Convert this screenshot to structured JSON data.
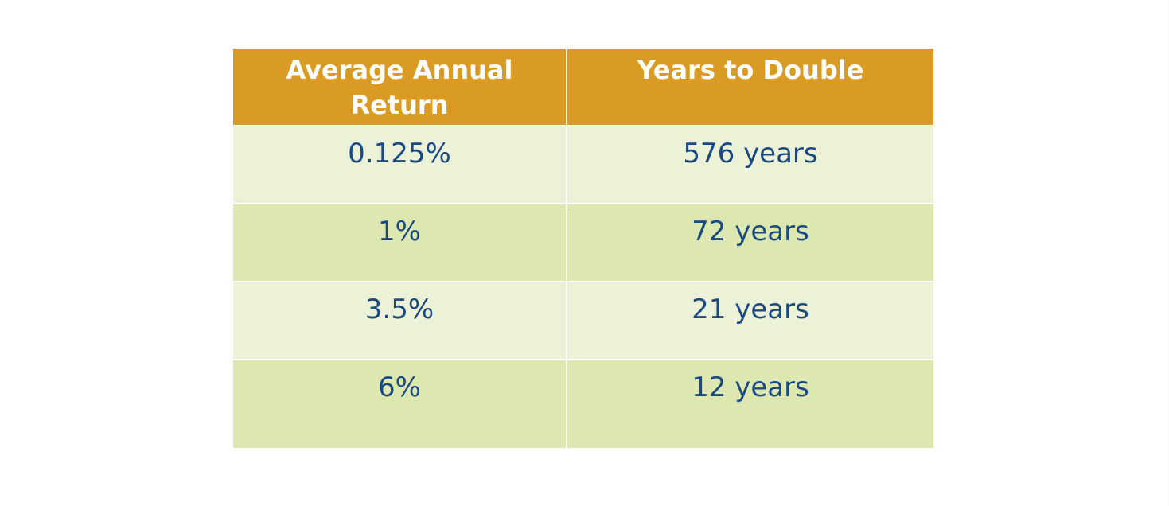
{
  "table": {
    "header": {
      "col1": "Average Annual Return",
      "col2": "Years to Double"
    },
    "rows": [
      {
        "rate": "0.125%",
        "years": "576 years"
      },
      {
        "rate": "1%",
        "years": "72 years"
      },
      {
        "rate": "3.5%",
        "years": "21 years"
      },
      {
        "rate": "6%",
        "years": "12 years"
      }
    ]
  },
  "colors": {
    "header_bg": "#d99b23",
    "row_light": "#ebf2d7",
    "row_dark": "#dde8b1",
    "cell_text": "#1c4a80",
    "header_text": "#ffffff"
  }
}
